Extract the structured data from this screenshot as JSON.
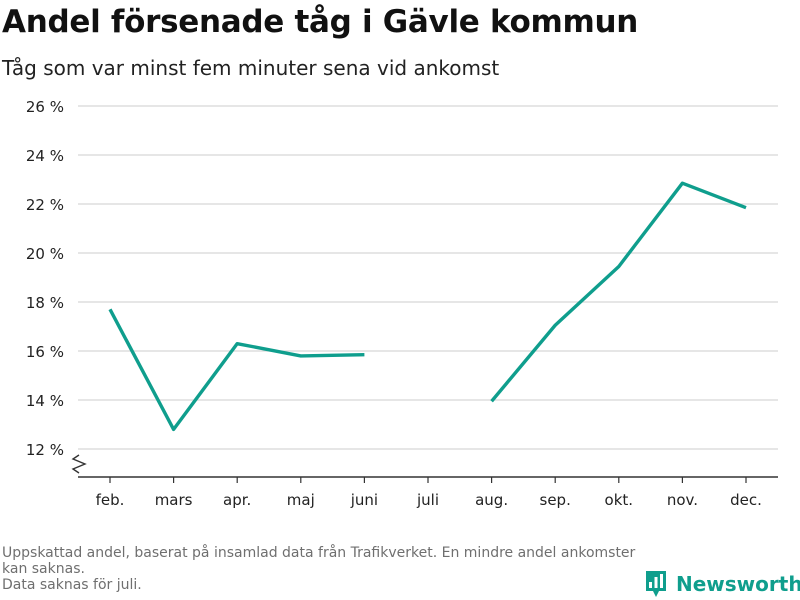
{
  "header": {
    "title": "Andel försenade tåg i Gävle kommun",
    "subtitle": "Tåg som var minst fem minuter sena vid ankomst"
  },
  "footnote": {
    "line1": "Uppskattad andel, baserat på insamlad data från Trafikverket. En mindre andel ankomster kan saknas.",
    "line2": "Data saknas för juli."
  },
  "brand": {
    "name": "Newsworthy",
    "color": "#0f9e8d"
  },
  "chart_data": {
    "type": "line",
    "title": "Andel försenade tåg i Gävle kommun",
    "subtitle": "Tåg som var minst fem minuter sena vid ankomst",
    "xlabel": "",
    "ylabel": "",
    "categories": [
      "feb.",
      "mars",
      "apr.",
      "maj",
      "juni",
      "juli",
      "aug.",
      "sep.",
      "okt.",
      "nov.",
      "dec."
    ],
    "series": [
      {
        "values": [
          17.7,
          12.8,
          16.3,
          15.8,
          15.85,
          null,
          13.95,
          17.05,
          19.45,
          22.85,
          21.85
        ]
      }
    ],
    "ylim": [
      11,
      26
    ],
    "yticks": [
      12,
      14,
      16,
      18,
      20,
      22,
      24,
      26
    ],
    "ytick_labels": [
      "12 %",
      "14 %",
      "16 %",
      "18 %",
      "20 %",
      "22 %",
      "24 %",
      "26 %"
    ],
    "y_axis_broken": true,
    "grid": true,
    "line_color": "#0f9e8d"
  }
}
